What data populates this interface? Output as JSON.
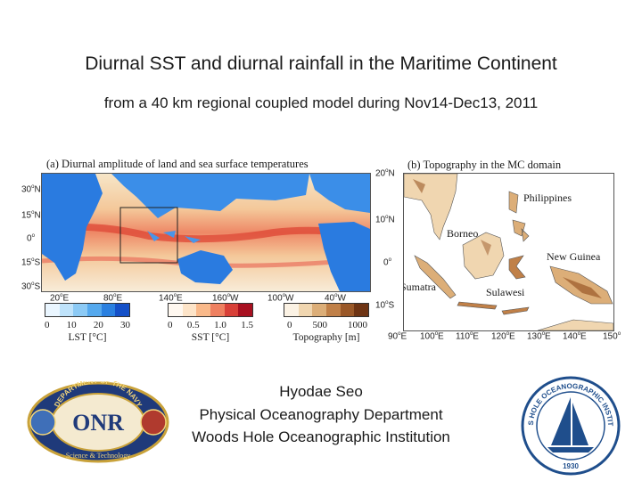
{
  "title": "Diurnal SST and diurnal rainfall in the Maritime Continent",
  "subtitle": "from a 40 km regional coupled model during Nov14-Dec13, 2011",
  "panel_a": {
    "label": "(a) Diurnal amplitude of land and sea surface temperatures",
    "lat_ticks": [
      {
        "v": "30",
        "h": "N"
      },
      {
        "v": "15",
        "h": "N"
      },
      {
        "v": "0",
        "h": ""
      },
      {
        "v": "15",
        "h": "S"
      },
      {
        "v": "30",
        "h": "S"
      }
    ],
    "lon_ticks": [
      {
        "v": "20",
        "h": "E"
      },
      {
        "v": "80",
        "h": "E"
      },
      {
        "v": "140",
        "h": "E"
      },
      {
        "v": "160",
        "h": "W"
      },
      {
        "v": "100",
        "h": "W"
      },
      {
        "v": "40",
        "h": "W"
      }
    ]
  },
  "panel_b": {
    "label": "(b) Topography in the MC domain",
    "lat_ticks": [
      {
        "v": "20",
        "h": "N"
      },
      {
        "v": "10",
        "h": "N"
      },
      {
        "v": "0",
        "h": ""
      },
      {
        "v": "10",
        "h": "S"
      }
    ],
    "lon_ticks": [
      {
        "v": "90",
        "h": "E"
      },
      {
        "v": "100",
        "h": "E"
      },
      {
        "v": "110",
        "h": "E"
      },
      {
        "v": "120",
        "h": "E"
      },
      {
        "v": "130",
        "h": "E"
      },
      {
        "v": "140",
        "h": "E"
      },
      {
        "v": "150",
        "h": ""
      }
    ],
    "places": {
      "philippines": "Philippines",
      "borneo": "Borneo",
      "new_guinea": "New Guinea",
      "sumatra": "Sumatra",
      "sulawesi": "Sulawesi"
    }
  },
  "colorbars": {
    "lst": {
      "ticks": [
        "0",
        "10",
        "20",
        "30"
      ],
      "label": "LST [°C]",
      "colors": [
        "#eaf6ff",
        "#bfe3fb",
        "#8ccaf5",
        "#55a9ee",
        "#2a80e0",
        "#1450c8"
      ]
    },
    "sst": {
      "ticks": [
        "0",
        "0.5",
        "1.0",
        "1.5"
      ],
      "label": "SST [°C]",
      "colors": [
        "#fff8f0",
        "#fde4c8",
        "#f9b98a",
        "#ef8060",
        "#d84038",
        "#a81020"
      ]
    },
    "topo": {
      "ticks": [
        "0",
        "500",
        "1000"
      ],
      "label": "Topography [m]",
      "colors": [
        "#fbf2e4",
        "#f0d6b0",
        "#dcae78",
        "#c08048",
        "#9a5828",
        "#6e3414"
      ]
    }
  },
  "author": {
    "name": "Hyodae Seo",
    "department": "Physical Oceanography Department",
    "institution": "Woods Hole Oceanographic Institution"
  },
  "logos": {
    "onr": {
      "ring_text": "DEPARTMENT OF THE NAVY",
      "bottom_text": "Science & Technology",
      "center": "ONR"
    },
    "whoi": {
      "ring_text": "WOODS HOLE OCEANOGRAPHIC INSTITUTION",
      "year": "1930"
    }
  }
}
